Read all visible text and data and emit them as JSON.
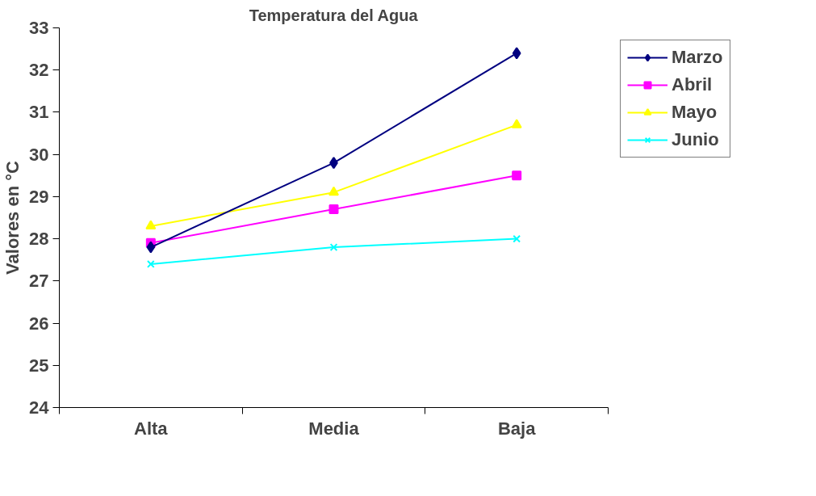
{
  "chart_data": {
    "type": "line",
    "title": "Temperatura del Agua",
    "ylabel": "Valores en °C",
    "categories": [
      "Alta",
      "Media",
      "Baja"
    ],
    "series": [
      {
        "name": "Marzo",
        "color": "#000080",
        "marker": "diamond",
        "values": [
          27.8,
          29.8,
          32.4
        ]
      },
      {
        "name": "Abril",
        "color": "#ff00ff",
        "marker": "square",
        "values": [
          27.9,
          28.7,
          29.5
        ]
      },
      {
        "name": "Mayo",
        "color": "#ffff00",
        "marker": "triangle",
        "values": [
          28.3,
          29.1,
          30.7
        ]
      },
      {
        "name": "Junio",
        "color": "#00ffff",
        "marker": "cross",
        "values": [
          27.4,
          27.8,
          28.0
        ]
      }
    ],
    "ylim": [
      24,
      33
    ],
    "yticks": [
      24,
      25,
      26,
      27,
      28,
      29,
      30,
      31,
      32,
      33
    ],
    "grid": false,
    "legend": "right"
  }
}
